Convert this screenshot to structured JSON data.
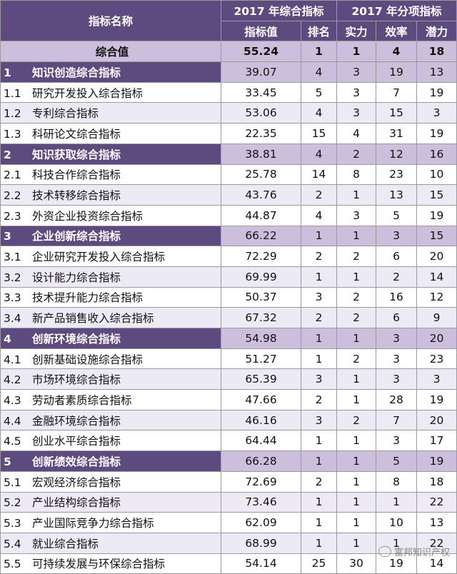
{
  "header": {
    "name_col": "指标名称",
    "group1": "2017 年综合指标",
    "group2": "2017 年分项指标",
    "cols": [
      "指标值",
      "排名",
      "实力",
      "效率",
      "潜力"
    ]
  },
  "rows": [
    {
      "type": "overall",
      "code": "",
      "name": "综合值",
      "value": "55.24",
      "rank": "1",
      "strength": "1",
      "efficiency": "4",
      "potential": "18"
    },
    {
      "type": "cat",
      "code": "1",
      "name": "知识创造综合指标",
      "value": "39.07",
      "rank": "4",
      "strength": "3",
      "efficiency": "19",
      "potential": "13"
    },
    {
      "type": "sub",
      "code": "1.1",
      "name": "研究开发投入综合指标",
      "value": "33.45",
      "rank": "5",
      "strength": "3",
      "efficiency": "7",
      "potential": "19"
    },
    {
      "type": "sub",
      "code": "1.2",
      "name": "专利综合指标",
      "value": "53.06",
      "rank": "4",
      "strength": "3",
      "efficiency": "15",
      "potential": "3"
    },
    {
      "type": "sub",
      "code": "1.3",
      "name": "科研论文综合指标",
      "value": "22.35",
      "rank": "15",
      "strength": "4",
      "efficiency": "31",
      "potential": "19"
    },
    {
      "type": "cat",
      "code": "2",
      "name": "知识获取综合指标",
      "value": "38.81",
      "rank": "4",
      "strength": "2",
      "efficiency": "12",
      "potential": "16"
    },
    {
      "type": "sub",
      "code": "2.1",
      "name": "科技合作综合指标",
      "value": "25.78",
      "rank": "14",
      "strength": "8",
      "efficiency": "23",
      "potential": "10"
    },
    {
      "type": "sub",
      "code": "2.2",
      "name": "技术转移综合指标",
      "value": "43.76",
      "rank": "2",
      "strength": "1",
      "efficiency": "13",
      "potential": "15"
    },
    {
      "type": "sub",
      "code": "2.3",
      "name": "外资企业投资综合指标",
      "value": "44.87",
      "rank": "4",
      "strength": "3",
      "efficiency": "5",
      "potential": "19"
    },
    {
      "type": "cat",
      "code": "3",
      "name": "企业创新综合指标",
      "value": "66.22",
      "rank": "1",
      "strength": "1",
      "efficiency": "3",
      "potential": "15"
    },
    {
      "type": "sub",
      "code": "3.1",
      "name": "企业研究开发投入综合指标",
      "value": "72.29",
      "rank": "2",
      "strength": "2",
      "efficiency": "6",
      "potential": "20"
    },
    {
      "type": "sub",
      "code": "3.2",
      "name": "设计能力综合指标",
      "value": "69.99",
      "rank": "1",
      "strength": "1",
      "efficiency": "2",
      "potential": "14"
    },
    {
      "type": "sub",
      "code": "3.3",
      "name": "技术提升能力综合指标",
      "value": "50.37",
      "rank": "3",
      "strength": "2",
      "efficiency": "16",
      "potential": "12"
    },
    {
      "type": "sub",
      "code": "3.4",
      "name": "新产品销售收入综合指标",
      "value": "67.32",
      "rank": "2",
      "strength": "2",
      "efficiency": "6",
      "potential": "9"
    },
    {
      "type": "cat",
      "code": "4",
      "name": "创新环境综合指标",
      "value": "54.98",
      "rank": "1",
      "strength": "1",
      "efficiency": "3",
      "potential": "20"
    },
    {
      "type": "sub",
      "code": "4.1",
      "name": "创新基础设施综合指标",
      "value": "51.27",
      "rank": "1",
      "strength": "2",
      "efficiency": "3",
      "potential": "23"
    },
    {
      "type": "sub",
      "code": "4.2",
      "name": "市场环境综合指标",
      "value": "65.39",
      "rank": "3",
      "strength": "1",
      "efficiency": "3",
      "potential": "3"
    },
    {
      "type": "sub",
      "code": "4.3",
      "name": "劳动者素质综合指标",
      "value": "47.66",
      "rank": "2",
      "strength": "1",
      "efficiency": "28",
      "potential": "19"
    },
    {
      "type": "sub",
      "code": "4.4",
      "name": "金融环境综合指标",
      "value": "46.16",
      "rank": "3",
      "strength": "2",
      "efficiency": "7",
      "potential": "20"
    },
    {
      "type": "sub",
      "code": "4.5",
      "name": "创业水平综合指标",
      "value": "64.44",
      "rank": "1",
      "strength": "1",
      "efficiency": "3",
      "potential": "17"
    },
    {
      "type": "cat",
      "code": "5",
      "name": "创新绩效综合指标",
      "value": "66.28",
      "rank": "1",
      "strength": "1",
      "efficiency": "5",
      "potential": "19"
    },
    {
      "type": "sub",
      "code": "5.1",
      "name": "宏观经济综合指标",
      "value": "72.69",
      "rank": "2",
      "strength": "1",
      "efficiency": "8",
      "potential": "18"
    },
    {
      "type": "sub",
      "code": "5.2",
      "name": "产业结构综合指标",
      "value": "73.46",
      "rank": "1",
      "strength": "1",
      "efficiency": "1",
      "potential": "22"
    },
    {
      "type": "sub",
      "code": "5.3",
      "name": "产业国际竞争力综合指标",
      "value": "62.09",
      "rank": "1",
      "strength": "1",
      "efficiency": "10",
      "potential": "13"
    },
    {
      "type": "sub",
      "code": "5.4",
      "name": "就业综合指标",
      "value": "68.99",
      "rank": "1",
      "strength": "1",
      "efficiency": "1",
      "potential": "22"
    },
    {
      "type": "sub",
      "code": "5.5",
      "name": "可持续发展与环保综合指标",
      "value": "54.14",
      "rank": "25",
      "strength": "30",
      "efficiency": "19",
      "potential": "14"
    }
  ],
  "watermark": "富邦知识产权",
  "colors": {
    "header": "#5d4a7e",
    "category_band": "#cbbfdc",
    "alt_row": "#eeeaf5"
  }
}
